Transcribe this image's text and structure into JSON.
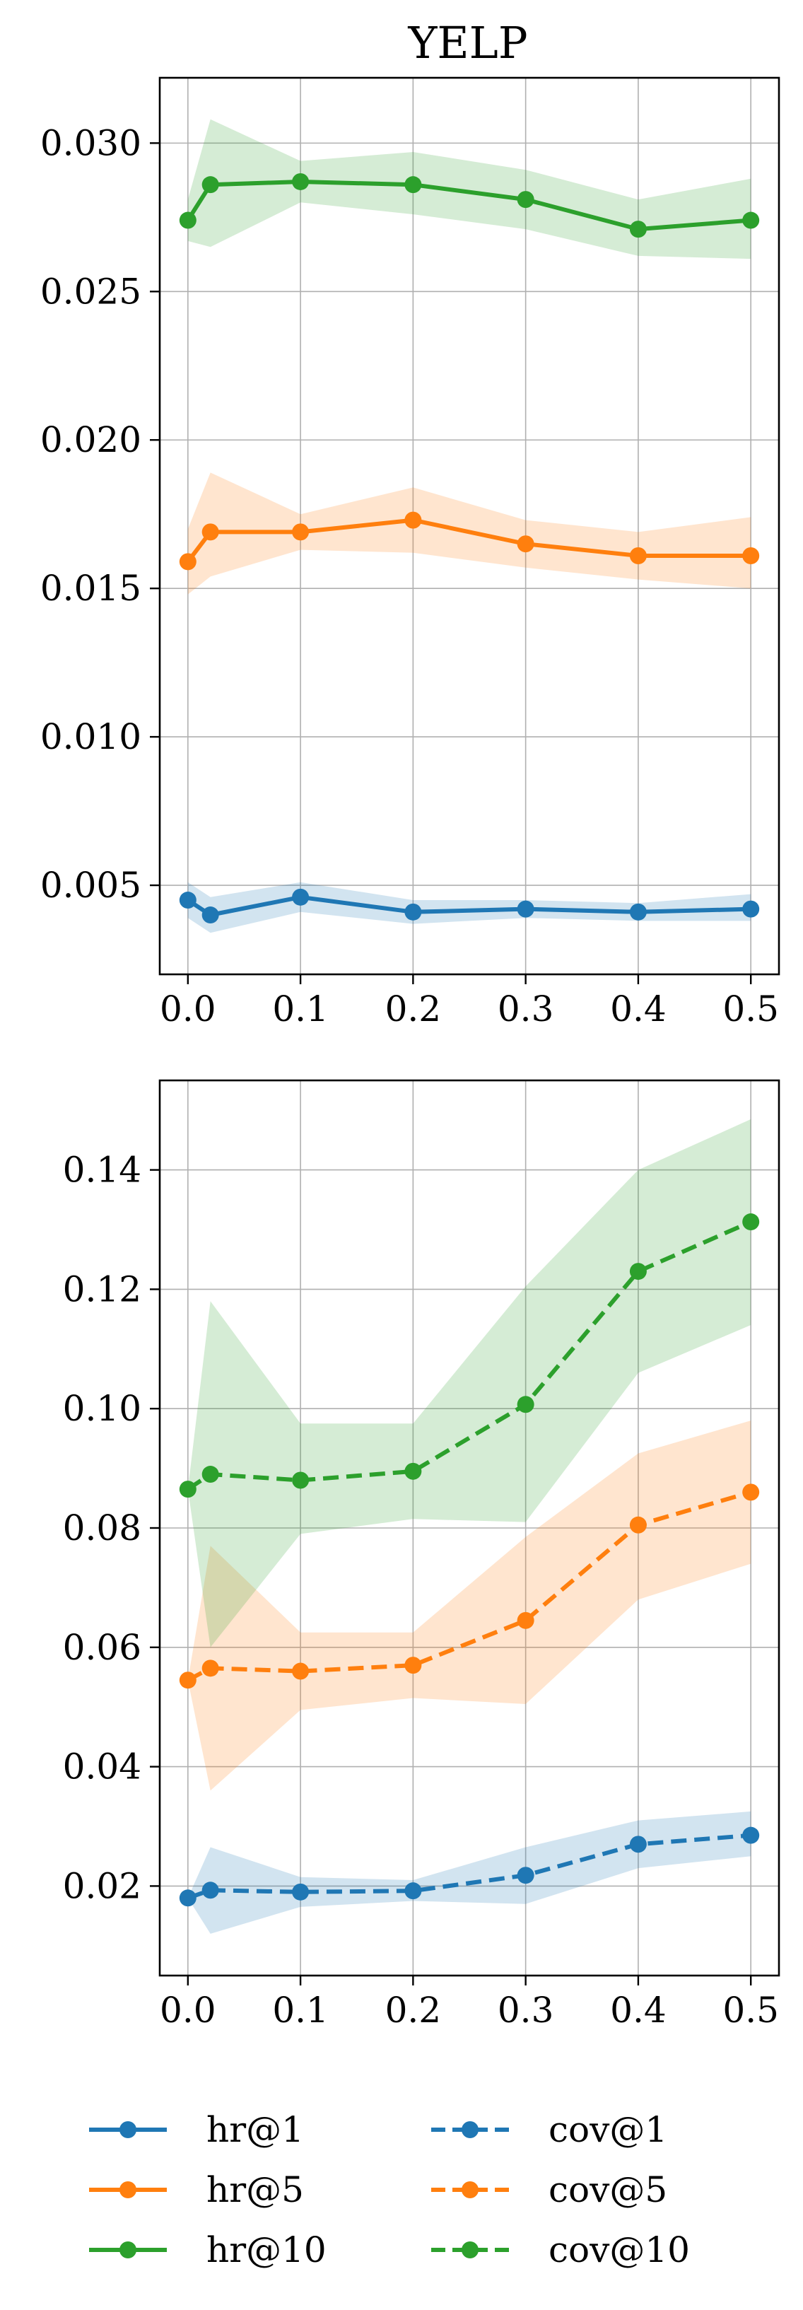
{
  "chart_data": [
    {
      "type": "line",
      "title": "YELP",
      "xlabel": "",
      "ylabel": "",
      "x": [
        0.0,
        0.02,
        0.1,
        0.2,
        0.3,
        0.4,
        0.5
      ],
      "xlim": [
        -0.025,
        0.525
      ],
      "ylim": [
        0.002,
        0.0322
      ],
      "xticks": [
        "0.0",
        "0.1",
        "0.2",
        "0.3",
        "0.4",
        "0.5"
      ],
      "yticks": [
        "0.005",
        "0.010",
        "0.015",
        "0.020",
        "0.025",
        "0.030"
      ],
      "grid": true,
      "series": [
        {
          "name": "hr@1",
          "color": "#1f77b4",
          "dash": "solid",
          "values": [
            0.0045,
            0.004,
            0.0046,
            0.0041,
            0.0042,
            0.0041,
            0.0042
          ],
          "lower": [
            0.0039,
            0.0034,
            0.0041,
            0.0037,
            0.0039,
            0.0038,
            0.0038
          ],
          "upper": [
            0.0051,
            0.0046,
            0.0051,
            0.0045,
            0.0045,
            0.0044,
            0.0047
          ]
        },
        {
          "name": "hr@5",
          "color": "#ff7f0e",
          "dash": "solid",
          "values": [
            0.0159,
            0.0169,
            0.0169,
            0.0173,
            0.0165,
            0.0161,
            0.0161
          ],
          "lower": [
            0.0148,
            0.0154,
            0.0163,
            0.0162,
            0.0157,
            0.0153,
            0.015
          ],
          "upper": [
            0.017,
            0.0189,
            0.0175,
            0.0184,
            0.0173,
            0.0169,
            0.0174
          ]
        },
        {
          "name": "hr@10",
          "color": "#2ca02c",
          "dash": "solid",
          "values": [
            0.0274,
            0.0286,
            0.0287,
            0.0286,
            0.0281,
            0.0271,
            0.0274
          ],
          "lower": [
            0.0267,
            0.0265,
            0.028,
            0.0276,
            0.0271,
            0.0262,
            0.0261
          ],
          "upper": [
            0.0281,
            0.0308,
            0.0294,
            0.0297,
            0.0291,
            0.0281,
            0.0288
          ]
        }
      ]
    },
    {
      "type": "line",
      "title": "",
      "xlabel": "",
      "ylabel": "",
      "x": [
        0.0,
        0.02,
        0.1,
        0.2,
        0.3,
        0.4,
        0.5
      ],
      "xlim": [
        -0.025,
        0.525
      ],
      "ylim": [
        0.005,
        0.155
      ],
      "xticks": [
        "0.0",
        "0.1",
        "0.2",
        "0.3",
        "0.4",
        "0.5"
      ],
      "yticks": [
        "0.02",
        "0.04",
        "0.06",
        "0.08",
        "0.10",
        "0.12",
        "0.14"
      ],
      "grid": true,
      "series": [
        {
          "name": "cov@1",
          "color": "#1f77b4",
          "dash": "dashed",
          "values": [
            0.018,
            0.0193,
            0.019,
            0.0192,
            0.0218,
            0.027,
            0.0285
          ],
          "lower": [
            0.018,
            0.012,
            0.0165,
            0.0175,
            0.017,
            0.023,
            0.025
          ],
          "upper": [
            0.018,
            0.0265,
            0.0215,
            0.021,
            0.0265,
            0.031,
            0.0325
          ]
        },
        {
          "name": "cov@5",
          "color": "#ff7f0e",
          "dash": "dashed",
          "values": [
            0.0545,
            0.0565,
            0.056,
            0.057,
            0.0645,
            0.0805,
            0.086
          ],
          "lower": [
            0.0545,
            0.036,
            0.0495,
            0.0515,
            0.0505,
            0.068,
            0.074
          ],
          "upper": [
            0.0545,
            0.077,
            0.0625,
            0.0625,
            0.0785,
            0.0925,
            0.098
          ]
        },
        {
          "name": "cov@10",
          "color": "#2ca02c",
          "dash": "dashed",
          "values": [
            0.0865,
            0.089,
            0.088,
            0.0895,
            0.1007,
            0.123,
            0.1313
          ],
          "lower": [
            0.0865,
            0.06,
            0.079,
            0.0815,
            0.081,
            0.106,
            0.114
          ],
          "upper": [
            0.0865,
            0.118,
            0.0975,
            0.0975,
            0.1205,
            0.14,
            0.1485
          ]
        }
      ]
    }
  ],
  "legend": {
    "placement": "bottom",
    "entries": [
      {
        "label": "hr@1",
        "color": "#1f77b4",
        "dash": "solid"
      },
      {
        "label": "hr@5",
        "color": "#ff7f0e",
        "dash": "solid"
      },
      {
        "label": "hr@10",
        "color": "#2ca02c",
        "dash": "solid"
      },
      {
        "label": "cov@1",
        "color": "#1f77b4",
        "dash": "dashed"
      },
      {
        "label": "cov@5",
        "color": "#ff7f0e",
        "dash": "dashed"
      },
      {
        "label": "cov@10",
        "color": "#2ca02c",
        "dash": "dashed"
      }
    ]
  }
}
